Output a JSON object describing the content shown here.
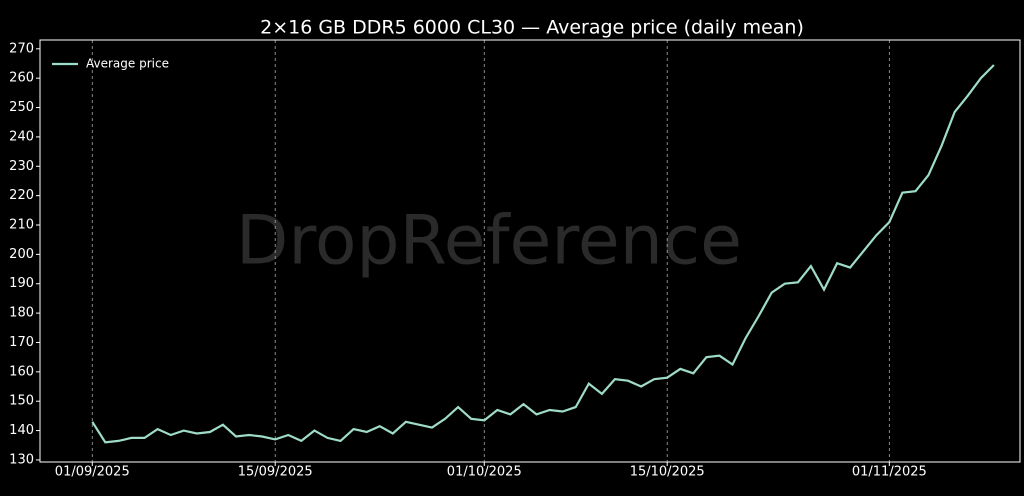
{
  "chart_data": {
    "type": "line",
    "title": "2×16 GB DDR5 6000 CL30 — Average price (daily mean)",
    "watermark": "DropReference",
    "x": [
      "01/09/2025",
      "02/09/2025",
      "03/09/2025",
      "04/09/2025",
      "05/09/2025",
      "06/09/2025",
      "07/09/2025",
      "08/09/2025",
      "09/09/2025",
      "10/09/2025",
      "11/09/2025",
      "12/09/2025",
      "13/09/2025",
      "14/09/2025",
      "15/09/2025",
      "16/09/2025",
      "17/09/2025",
      "18/09/2025",
      "19/09/2025",
      "20/09/2025",
      "21/09/2025",
      "22/09/2025",
      "23/09/2025",
      "24/09/2025",
      "25/09/2025",
      "26/09/2025",
      "27/09/2025",
      "28/09/2025",
      "29/09/2025",
      "30/09/2025",
      "01/10/2025",
      "02/10/2025",
      "03/10/2025",
      "04/10/2025",
      "05/10/2025",
      "06/10/2025",
      "07/10/2025",
      "08/10/2025",
      "09/10/2025",
      "10/10/2025",
      "11/10/2025",
      "12/10/2025",
      "13/10/2025",
      "14/10/2025",
      "15/10/2025",
      "16/10/2025",
      "17/10/2025",
      "18/10/2025",
      "19/10/2025",
      "20/10/2025",
      "21/10/2025",
      "22/10/2025",
      "23/10/2025",
      "24/10/2025",
      "25/10/2025",
      "26/10/2025",
      "27/10/2025",
      "28/10/2025",
      "29/10/2025",
      "30/10/2025",
      "31/10/2025",
      "01/11/2025",
      "02/11/2025",
      "03/11/2025",
      "04/11/2025",
      "05/11/2025",
      "06/11/2025",
      "07/11/2025",
      "08/11/2025",
      "09/11/2025"
    ],
    "series": [
      {
        "name": "Average price",
        "color": "#9fdcc8",
        "values": [
          143,
          136,
          136.5,
          137.5,
          137.5,
          140.5,
          138.5,
          140,
          139,
          139.5,
          142,
          138,
          138.5,
          138,
          137,
          138.5,
          136.5,
          140,
          137.5,
          136.5,
          140.5,
          139.5,
          141.5,
          139,
          143,
          142,
          141,
          144,
          148,
          144,
          143.5,
          147,
          145.5,
          149,
          145.5,
          147,
          146.5,
          148,
          156,
          152.5,
          157.5,
          157,
          155,
          157.5,
          158,
          161,
          159.5,
          165,
          165.5,
          162.5,
          171.5,
          179,
          187,
          190,
          190.5,
          196,
          188,
          197,
          195.5,
          201,
          206.5,
          211,
          221,
          221.5,
          227,
          237,
          248.5,
          254,
          260,
          264.5
        ]
      }
    ],
    "xlim": [
      "28/08/2025",
      "11/11/2025"
    ],
    "xticks": [
      "01/09/2025",
      "15/09/2025",
      "01/10/2025",
      "15/10/2025",
      "01/11/2025"
    ],
    "ylim": [
      129.3,
      273
    ],
    "yticks": [
      130,
      140,
      150,
      160,
      170,
      180,
      190,
      200,
      210,
      220,
      230,
      240,
      250,
      260,
      270
    ],
    "grid": true,
    "legend": "upper-left"
  }
}
